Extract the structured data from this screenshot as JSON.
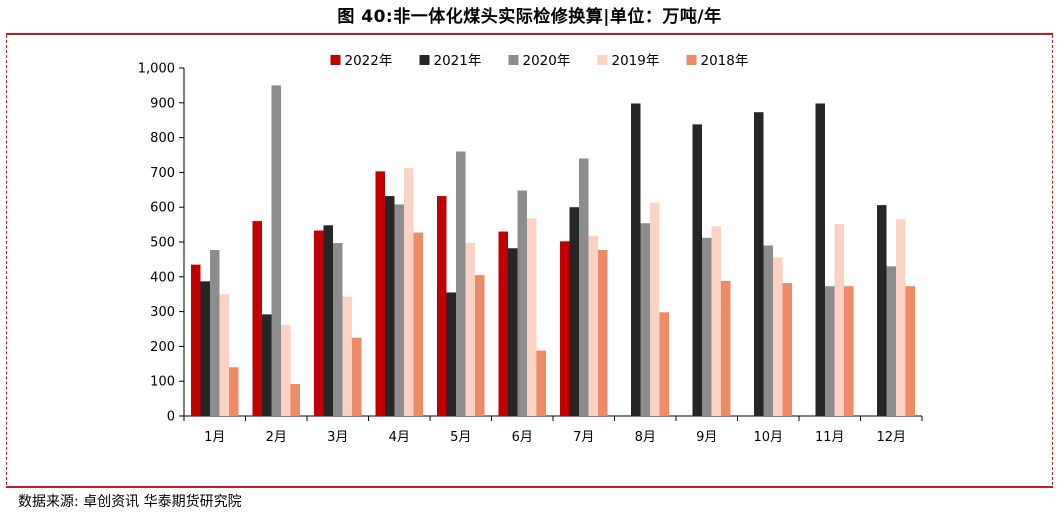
{
  "title": "图 40:非一体化煤头实际检修换算|单位：万吨/年",
  "source": "数据来源:  卓创资讯  华泰期货研究院",
  "chart_data": {
    "type": "bar",
    "categories": [
      "1月",
      "2月",
      "3月",
      "4月",
      "5月",
      "6月",
      "7月",
      "8月",
      "9月",
      "10月",
      "11月",
      "12月"
    ],
    "series": [
      {
        "name": "2022年",
        "color": "#c00000",
        "values": [
          435,
          560,
          533,
          703,
          632,
          530,
          502,
          null,
          null,
          null,
          null,
          null
        ]
      },
      {
        "name": "2021年",
        "color": "#262626",
        "values": [
          387,
          292,
          548,
          632,
          355,
          482,
          600,
          898,
          838,
          873,
          898,
          606
        ]
      },
      {
        "name": "2020年",
        "color": "#8c8c8c",
        "values": [
          477,
          950,
          497,
          608,
          760,
          648,
          740,
          554,
          512,
          490,
          373,
          430
        ]
      },
      {
        "name": "2019年",
        "color": "#fbd2c3",
        "values": [
          350,
          262,
          343,
          712,
          497,
          568,
          518,
          613,
          545,
          456,
          552,
          565
        ]
      },
      {
        "name": "2018年",
        "color": "#ef8a67",
        "values": [
          140,
          92,
          225,
          527,
          405,
          188,
          477,
          298,
          388,
          382,
          373,
          373
        ]
      }
    ],
    "ylim": [
      0,
      1000
    ],
    "yticks": [
      "0",
      "100",
      "200",
      "300",
      "400",
      "500",
      "600",
      "700",
      "800",
      "900",
      "1,000"
    ],
    "legend_position": "top-center",
    "grid": false
  }
}
